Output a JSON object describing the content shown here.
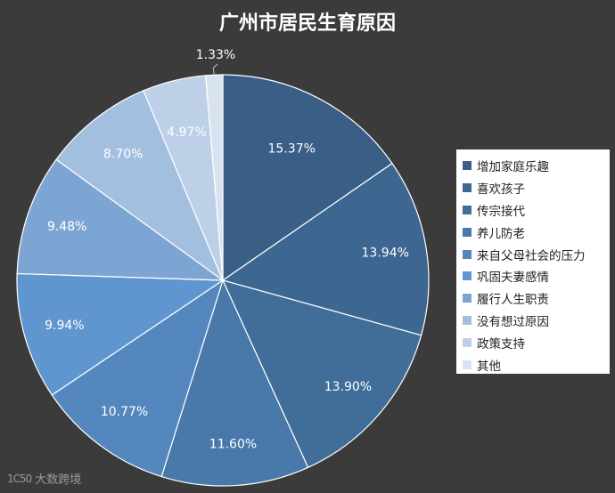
{
  "chart_data": {
    "type": "pie",
    "title": "广州市居民生育原因",
    "categories": [
      "增加家庭乐趣",
      "喜欢孩子",
      "传宗接代",
      "养儿防老",
      "来自父母社会的压力",
      "巩固夫妻感情",
      "履行人生职责",
      "没有想过原因",
      "政策支持",
      "其他"
    ],
    "values": [
      15.37,
      13.94,
      13.9,
      11.6,
      10.77,
      9.94,
      9.48,
      8.7,
      4.97,
      1.33
    ],
    "labels": [
      "15.37%",
      "13.94%",
      "13.90%",
      "11.60%",
      "10.77%",
      "9.94%",
      "9.48%",
      "8.70%",
      "4.97%",
      "1.33%"
    ],
    "colors": [
      "#3a5f87",
      "#3d6690",
      "#416d99",
      "#4978aa",
      "#5487be",
      "#6096d0",
      "#7da5d4",
      "#a3bfdf",
      "#bdd0e8",
      "#d9e3f0"
    ],
    "legend_position": "right"
  },
  "watermark": {
    "logo": "1C50",
    "text": "大数跨境"
  }
}
